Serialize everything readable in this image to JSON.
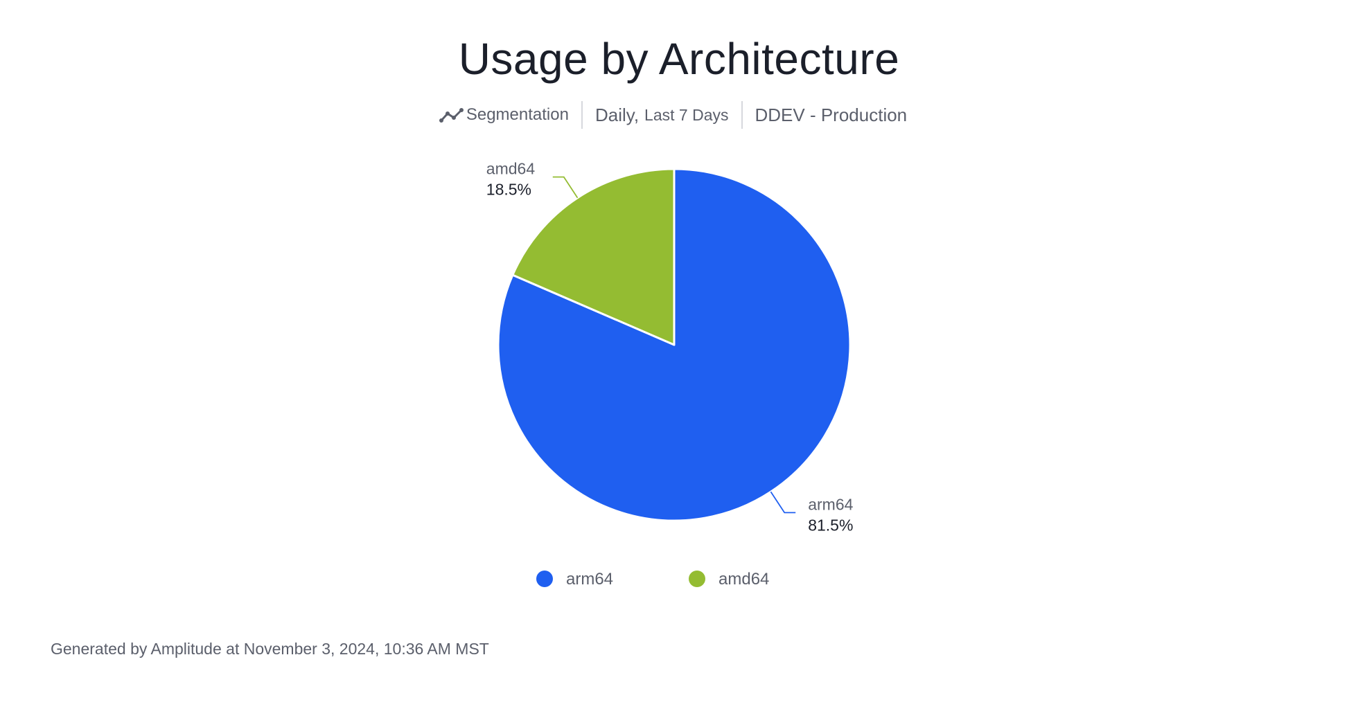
{
  "header": {
    "title": "Usage by Architecture",
    "segmentation_label": "Segmentation",
    "interval_label": "Daily,",
    "range_label": "Last 7 Days",
    "project_label": "DDEV - Production"
  },
  "chart_data": {
    "type": "pie",
    "title": "Usage by Architecture",
    "categories": [
      "arm64",
      "amd64"
    ],
    "values": [
      81.5,
      18.5
    ],
    "value_labels": [
      "81.5%",
      "18.5%"
    ],
    "colors": [
      "#1f5ff0",
      "#94bc32"
    ],
    "legend": {
      "placement": "bottom",
      "entries": [
        "arm64",
        "amd64"
      ]
    }
  },
  "footer": {
    "text": "Generated by Amplitude at November 3, 2024, 10:36 AM MST"
  },
  "icons": {
    "segmentation": "segmentation-line-icon"
  }
}
